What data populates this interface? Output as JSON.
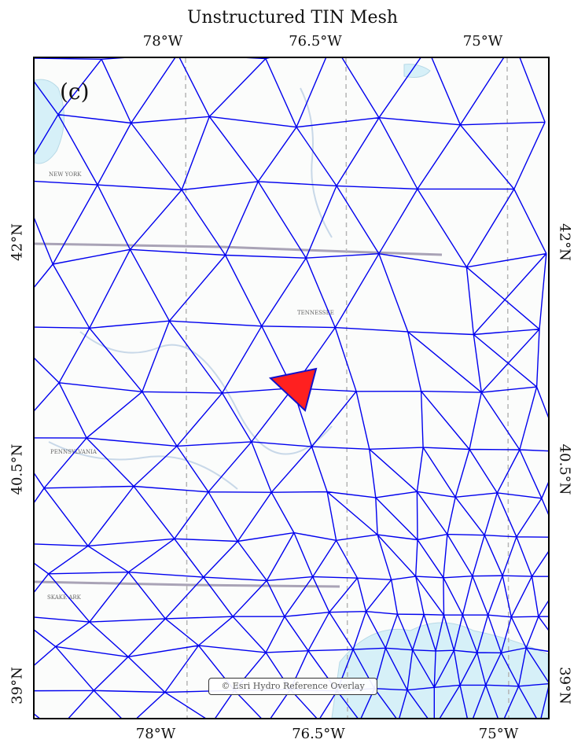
{
  "title": "Unstructured TIN Mesh",
  "panel_label": "(c)",
  "attribution": "© Esri Hydro Reference Overlay",
  "axes": {
    "top": [
      "78°W",
      "76.5°W",
      "75°W"
    ],
    "bottom": [
      "78°W",
      "76.5°W",
      "75°W"
    ],
    "left": [
      "42°N",
      "40.5°N",
      "39°N"
    ],
    "right": [
      "42°N",
      "40.5°N",
      "39°N"
    ]
  },
  "colors": {
    "mesh_edges": "#0000ee",
    "highlight_fill": "#ff2020",
    "water": "#d6f0f8",
    "basemap": "#fbfcfb",
    "frame": "#000000"
  },
  "basemap_labels": [
    "NEW YORK",
    "PENNSYLVANIA",
    "TENNESSEE",
    "SKAKE ARK"
  ]
}
